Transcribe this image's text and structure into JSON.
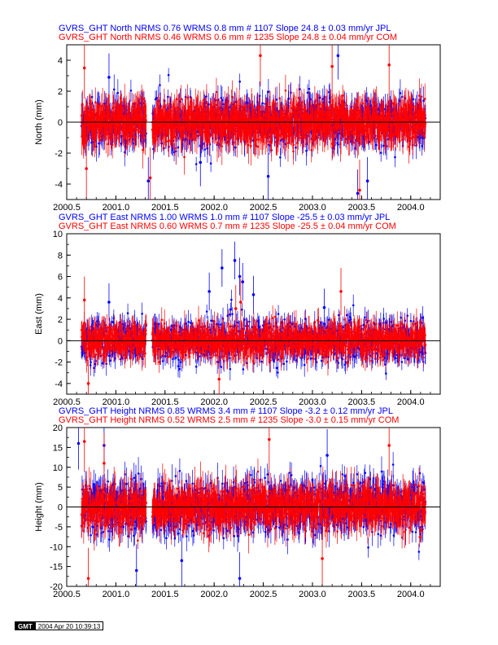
{
  "colors": {
    "jpl": "#0000ff",
    "com": "#ff0000",
    "zero_line": "#000000"
  },
  "xticks": [
    "2000.5",
    "2001.0",
    "2001.5",
    "2002.0",
    "2002.5",
    "2003.0",
    "2003.5",
    "2004.0"
  ],
  "chart_data": [
    {
      "type": "scatter",
      "ylabel": "North (mm)",
      "xlim": [
        2000.5,
        2004.3
      ],
      "ylim": [
        -5,
        5
      ],
      "yticks": [
        -4,
        -2,
        0,
        2,
        4
      ],
      "header_lines": [
        "GVRS_GHT North NRMS 0.76 WRMS  0.8 mm # 1107 Slope   24.8 ±  0.03 mm/yr JPL",
        "GVRS_GHT North NRMS 0.46 WRMS  0.6 mm # 1235 Slope   24.8 ±  0.04 mm/yr COM"
      ],
      "series": [
        {
          "name": "JPL",
          "count": 1107,
          "nrms": 0.76,
          "wrms_mm": 0.8,
          "slope_mm_yr": 24.8,
          "slope_sigma": 0.03,
          "typical_spread": 0.8,
          "typical_error": 0.7,
          "outliers": [
            [
              2000.93,
              2.9
            ],
            [
              2001.33,
              -3.8
            ],
            [
              2001.86,
              -2.6
            ],
            [
              2002.55,
              -3.5
            ],
            [
              2003.26,
              4.3
            ],
            [
              2003.46,
              -4.6
            ],
            [
              2003.56,
              -3.8
            ]
          ]
        },
        {
          "name": "COM",
          "count": 1235,
          "nrms": 0.46,
          "wrms_mm": 0.6,
          "slope_mm_yr": 24.8,
          "slope_sigma": 0.04,
          "typical_spread": 0.6,
          "typical_error": 0.9,
          "outliers": [
            [
              2000.68,
              3.5
            ],
            [
              2000.7,
              -3.0
            ],
            [
              2001.35,
              -3.6
            ],
            [
              2002.47,
              4.3
            ],
            [
              2003.2,
              3.6
            ],
            [
              2003.48,
              -4.4
            ],
            [
              2003.78,
              3.7
            ]
          ]
        }
      ]
    },
    {
      "type": "scatter",
      "ylabel": "East (mm)",
      "xlim": [
        2000.5,
        2004.3
      ],
      "ylim": [
        -5,
        10
      ],
      "yticks": [
        -4,
        -2,
        0,
        2,
        4,
        6,
        8,
        10
      ],
      "header_lines": [
        "GVRS_GHT East NRMS 1.00 WRMS  1.0 mm # 1107 Slope  -25.5 ±  0.03 mm/yr JPL",
        "GVRS_GHT East NRMS 0.60 WRMS  0.7 mm # 1235 Slope  -25.5 ±  0.04 mm/yr COM"
      ],
      "series": [
        {
          "name": "JPL",
          "count": 1107,
          "nrms": 1.0,
          "wrms_mm": 1.0,
          "slope_mm_yr": -25.5,
          "slope_sigma": 0.03,
          "typical_spread": 1.0,
          "typical_error": 0.8,
          "outliers": [
            [
              2002.08,
              6.8
            ],
            [
              2002.21,
              7.5
            ],
            [
              2002.26,
              6.0
            ],
            [
              2002.29,
              5.5
            ],
            [
              2001.95,
              4.6
            ],
            [
              2002.4,
              4.3
            ],
            [
              2003.12,
              3.1
            ],
            [
              2000.93,
              3.6
            ]
          ]
        },
        {
          "name": "COM",
          "count": 1235,
          "nrms": 0.6,
          "wrms_mm": 0.7,
          "slope_mm_yr": -25.5,
          "slope_sigma": 0.04,
          "typical_spread": 0.7,
          "typical_error": 1.0,
          "outliers": [
            [
              2002.22,
              3.0
            ],
            [
              2002.27,
              3.6
            ],
            [
              2000.68,
              3.8
            ],
            [
              2000.72,
              -4.0
            ],
            [
              2003.29,
              4.6
            ],
            [
              2002.05,
              -3.6
            ]
          ]
        }
      ]
    },
    {
      "type": "scatter",
      "ylabel": "Height (mm)",
      "xlim": [
        2000.5,
        2004.3
      ],
      "ylim": [
        -20,
        20
      ],
      "yticks": [
        -20,
        -15,
        -10,
        -5,
        0,
        5,
        10,
        15,
        20
      ],
      "header_lines": [
        "GVRS_GHT Height NRMS 0.85 WRMS  3.4 mm # 1107 Slope   -3.2 ±  0.12 mm/yr JPL",
        "GVRS_GHT Height NRMS 0.52 WRMS  2.5 mm # 1235 Slope   -3.0 ±  0.15 mm/yr COM"
      ],
      "series": [
        {
          "name": "JPL",
          "count": 1107,
          "nrms": 0.85,
          "wrms_mm": 3.4,
          "slope_mm_yr": -3.2,
          "slope_sigma": 0.12,
          "typical_spread": 3.4,
          "typical_error": 3.0,
          "outliers": [
            [
              2000.88,
              15.5
            ],
            [
              2002.26,
              -18.0
            ],
            [
              2001.21,
              -16.0
            ],
            [
              2000.62,
              16.0
            ],
            [
              2003.15,
              13.0
            ],
            [
              2001.67,
              -13.5
            ]
          ]
        },
        {
          "name": "COM",
          "count": 1235,
          "nrms": 0.52,
          "wrms_mm": 2.5,
          "slope_mm_yr": -3.0,
          "slope_sigma": 0.15,
          "typical_spread": 2.5,
          "typical_error": 3.5,
          "outliers": [
            [
              2000.68,
              16.5
            ],
            [
              2000.72,
              -18.0
            ],
            [
              2002.56,
              17.0
            ],
            [
              2003.78,
              15.5
            ],
            [
              2000.88,
              11.0
            ],
            [
              2003.1,
              -13.0
            ]
          ]
        }
      ]
    }
  ],
  "gmt_stamp": {
    "logo": "GMT",
    "timestamp": "2004 Apr 20 10:39:13"
  }
}
